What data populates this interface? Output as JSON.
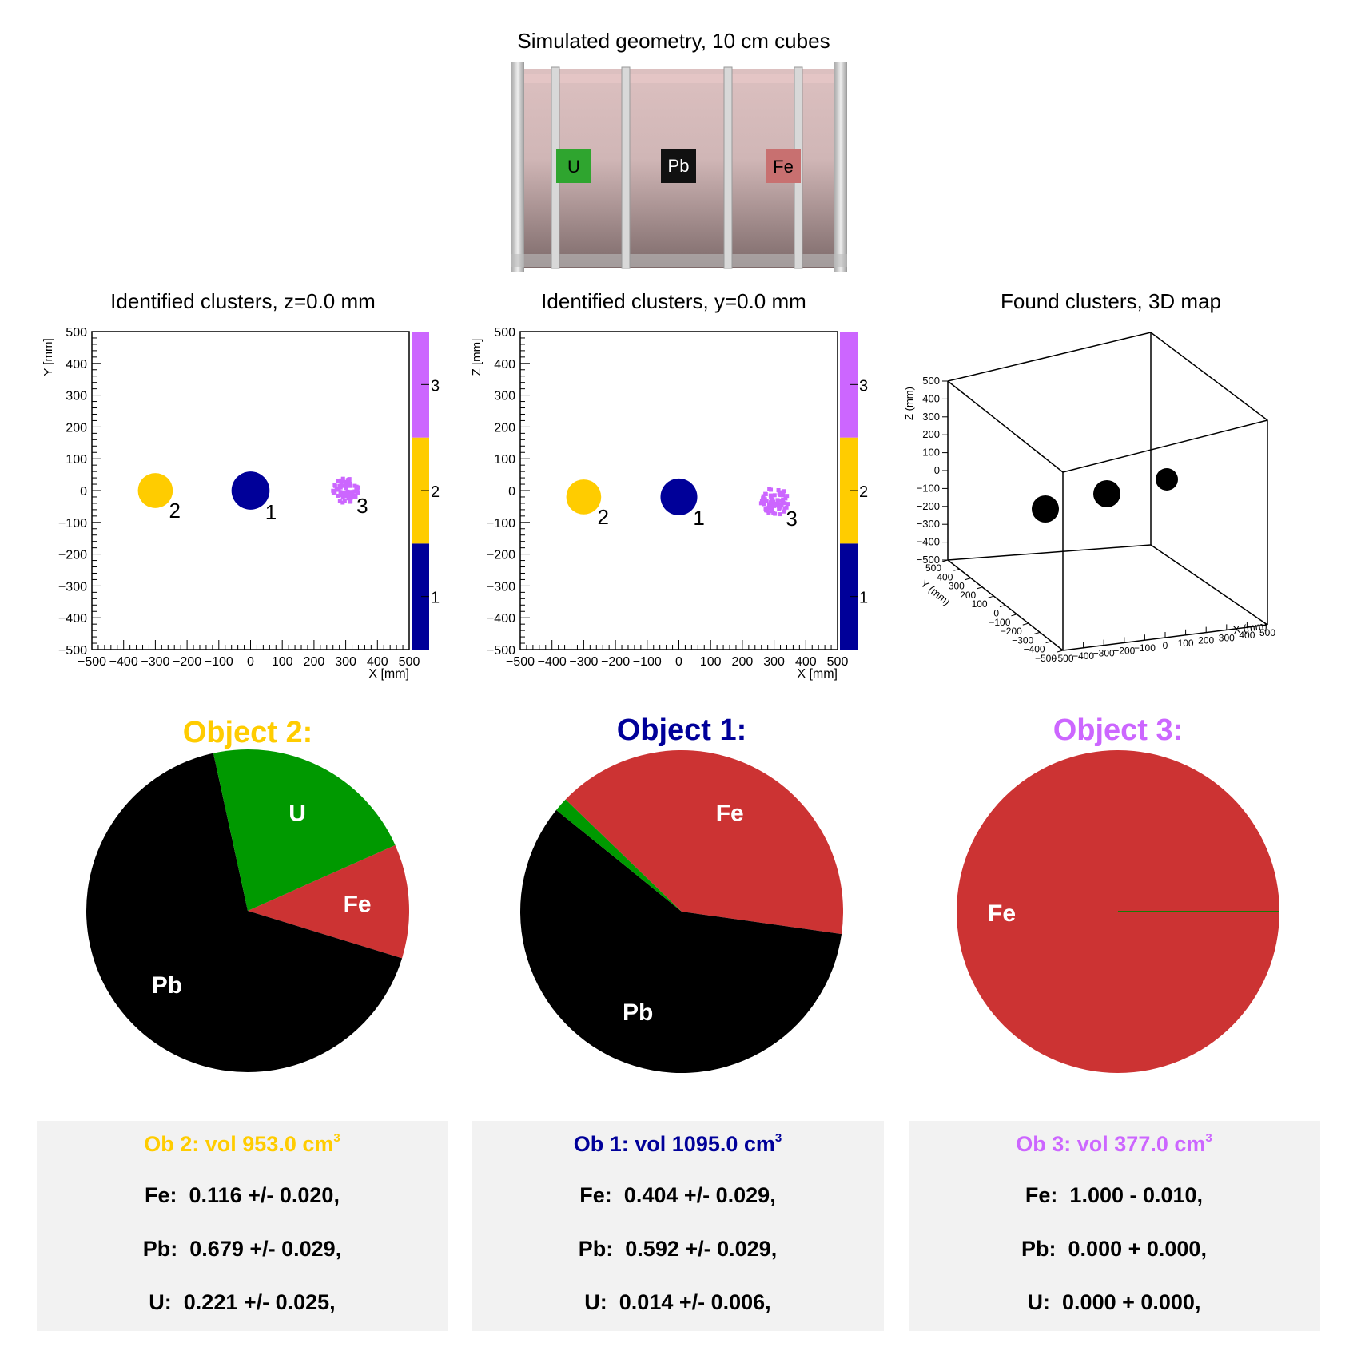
{
  "geometry": {
    "title": "Simulated geometry, 10 cm cubes",
    "labels": [
      "U",
      "Pb",
      "Fe"
    ],
    "colors": {
      "U": "#2fa52f",
      "Pb": "#111111",
      "Fe": "#c87070"
    }
  },
  "chart_data": [
    {
      "type": "scatter",
      "title": "Identified clusters, z=0.0 mm",
      "xlabel": "X [mm]",
      "ylabel": "Y [mm]",
      "xlim": [
        -500,
        500
      ],
      "ylim": [
        -500,
        500
      ],
      "xticks": [
        "−500",
        "−400",
        "−300",
        "−200",
        "−100",
        "0",
        "100",
        "200",
        "300",
        "400",
        "500"
      ],
      "yticks": [
        "−500",
        "−400",
        "−300",
        "−200",
        "−100",
        "0",
        "100",
        "200",
        "300",
        "400",
        "500"
      ],
      "clusters": [
        {
          "id": "1",
          "x": 0,
          "y": 0,
          "r": 60,
          "color": "#000099"
        },
        {
          "id": "2",
          "x": -300,
          "y": 0,
          "r": 55,
          "color": "#ffcc00"
        },
        {
          "id": "3",
          "x": 300,
          "y": 0,
          "r": 40,
          "color": "#cc66ff",
          "sparse": true
        }
      ],
      "colorbar": {
        "ticks": [
          "1",
          "2",
          "3"
        ],
        "colors": [
          "#000099",
          "#ffcc00",
          "#cc66ff"
        ]
      }
    },
    {
      "type": "scatter",
      "title": "Identified clusters, y=0.0 mm",
      "xlabel": "X [mm]",
      "ylabel": "Z [mm]",
      "xlim": [
        -500,
        500
      ],
      "ylim": [
        -500,
        500
      ],
      "xticks": [
        "−500",
        "−400",
        "−300",
        "−200",
        "−100",
        "0",
        "100",
        "200",
        "300",
        "400",
        "500"
      ],
      "yticks": [
        "−500",
        "−400",
        "−300",
        "−200",
        "−100",
        "0",
        "100",
        "200",
        "300",
        "400",
        "500"
      ],
      "clusters": [
        {
          "id": "1",
          "x": 0,
          "y": -20,
          "r": 58,
          "color": "#000099"
        },
        {
          "id": "2",
          "x": -300,
          "y": -20,
          "r": 55,
          "color": "#ffcc00"
        },
        {
          "id": "3",
          "x": 300,
          "y": -35,
          "r": 45,
          "color": "#cc66ff",
          "sparse": true
        }
      ],
      "colorbar": {
        "ticks": [
          "1",
          "2",
          "3"
        ],
        "colors": [
          "#000099",
          "#ffcc00",
          "#cc66ff"
        ]
      }
    },
    {
      "type": "scatter3d",
      "title": "Found clusters, 3D map",
      "xlabel": "X (mm)",
      "ylabel": "Y (mm)",
      "zlabel": "Z (mm)",
      "zticks": [
        "500",
        "400",
        "300",
        "200",
        "100",
        "0",
        "−100",
        "−200",
        "−300",
        "−400",
        "−500"
      ],
      "yticks": [
        "500",
        "400",
        "300",
        "200",
        "100",
        "0",
        "−100",
        "−200",
        "−300",
        "−400",
        "−500"
      ],
      "xticks": [
        "−500",
        "−400",
        "−300",
        "−200",
        "−100",
        "0",
        "100",
        "200",
        "300",
        "400",
        "500"
      ]
    },
    {
      "type": "pie",
      "title": "Object 2:",
      "title_color": "#ffcc00",
      "slices": [
        {
          "label": "Fe",
          "value": 0.116,
          "color": "#cc3333"
        },
        {
          "label": "Pb",
          "value": 0.679,
          "color": "#000000"
        },
        {
          "label": "U",
          "value": 0.221,
          "color": "#009900"
        }
      ]
    },
    {
      "type": "pie",
      "title": "Object 1:",
      "title_color": "#000099",
      "slices": [
        {
          "label": "Fe",
          "value": 0.404,
          "color": "#cc3333"
        },
        {
          "label": "Pb",
          "value": 0.592,
          "color": "#000000"
        },
        {
          "label": "U",
          "value": 0.014,
          "color": "#009900"
        }
      ]
    },
    {
      "type": "pie",
      "title": "Object 3:",
      "title_color": "#cc66ff",
      "slices": [
        {
          "label": "Fe",
          "value": 1.0,
          "color": "#cc3333"
        },
        {
          "label": "Pb",
          "value": 0.0,
          "color": "#000000"
        },
        {
          "label": "U",
          "value": 0.0,
          "color": "#009900"
        }
      ]
    }
  ],
  "summaries": [
    {
      "title": "Ob 2: vol 953.0 cm",
      "sup": "3",
      "color": "#ffcc00",
      "lines": [
        "Fe:  0.116 +/- 0.020,",
        "Pb:  0.679 +/- 0.029,",
        "U:  0.221 +/- 0.025,"
      ]
    },
    {
      "title": "Ob 1: vol 1095.0 cm",
      "sup": "3",
      "color": "#000099",
      "lines": [
        "Fe:  0.404 +/- 0.029,",
        "Pb:  0.592 +/- 0.029,",
        "U:  0.014 +/- 0.006,"
      ]
    },
    {
      "title": "Ob 3: vol 377.0 cm",
      "sup": "3",
      "color": "#cc66ff",
      "lines": [
        "Fe:  1.000 - 0.010,",
        "Pb:  0.000 + 0.000,",
        "U:  0.000 + 0.000,"
      ]
    }
  ]
}
